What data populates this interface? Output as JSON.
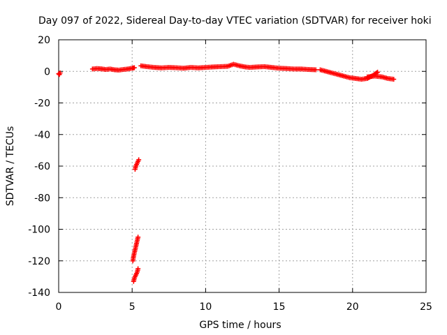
{
  "chart_data": {
    "type": "scatter",
    "title": "Day 097 of 2022, Sidereal Day-to-day VTEC variation (SDTVAR) for receiver hoki",
    "xlabel": "GPS time / hours",
    "ylabel": "SDTVAR / TECUs",
    "xlim": [
      0,
      25
    ],
    "ylim": [
      -140,
      20
    ],
    "xticks": [
      0,
      5,
      10,
      15,
      20,
      25
    ],
    "yticks": [
      20,
      0,
      -20,
      -40,
      -60,
      -80,
      -100,
      -120,
      -140
    ],
    "grid": true,
    "marker": "+",
    "color": "#ff0000",
    "series": [
      {
        "name": "SDTVAR",
        "segments": [
          {
            "x": [
              0.0,
              0.05,
              0.1
            ],
            "y": [
              -1.5,
              -2.0,
              -1.0
            ]
          },
          {
            "x": [
              2.3,
              2.6,
              2.9,
              3.2,
              3.5,
              3.8,
              4.1,
              4.4,
              4.7,
              5.0,
              5.15
            ],
            "y": [
              1.5,
              1.8,
              1.6,
              1.2,
              1.5,
              1.0,
              0.8,
              1.2,
              1.5,
              2.0,
              2.3
            ]
          },
          {
            "x": [
              5.2,
              5.25,
              5.3,
              5.35,
              5.4,
              5.45
            ],
            "y": [
              -62,
              -60,
              -59,
              -58,
              -57,
              -56
            ]
          },
          {
            "x": [
              5.05,
              5.1,
              5.15,
              5.2,
              5.25,
              5.3,
              5.35,
              5.4
            ],
            "y": [
              -120,
              -117,
              -115,
              -113,
              -111,
              -109,
              -107,
              -105
            ]
          },
          {
            "x": [
              5.1,
              5.15,
              5.2,
              5.25,
              5.3,
              5.35,
              5.4
            ],
            "y": [
              -133,
              -131,
              -130,
              -129,
              -128,
              -127,
              -125
            ]
          },
          {
            "x": [
              5.6,
              6.0,
              6.5,
              7.0,
              7.5,
              8.0,
              8.5,
              9.0,
              9.5,
              10.0,
              10.5,
              11.0,
              11.5,
              11.9,
              12.3,
              12.7,
              13.0,
              13.5,
              14.0,
              14.5,
              15.0,
              15.5,
              16.0,
              16.5,
              17.0,
              17.5
            ],
            "y": [
              3.5,
              3.0,
              2.5,
              2.2,
              2.5,
              2.3,
              2.0,
              2.5,
              2.2,
              2.5,
              2.8,
              3.0,
              3.2,
              4.5,
              3.5,
              2.8,
              2.5,
              2.8,
              3.0,
              2.5,
              2.0,
              1.8,
              1.5,
              1.5,
              1.2,
              1.0
            ]
          },
          {
            "x": [
              17.8,
              18.2,
              18.6,
              19.0,
              19.4,
              19.8,
              20.2,
              20.6,
              21.0,
              21.4,
              21.7
            ],
            "y": [
              1.0,
              0.0,
              -1.0,
              -2.0,
              -3.0,
              -4.0,
              -4.5,
              -5.0,
              -4.5,
              -2.5,
              -0.5
            ]
          },
          {
            "x": [
              21.0,
              21.5,
              22.0,
              22.4,
              22.8
            ],
            "y": [
              -3.5,
              -3.0,
              -3.5,
              -4.5,
              -5.0
            ]
          }
        ]
      }
    ]
  }
}
